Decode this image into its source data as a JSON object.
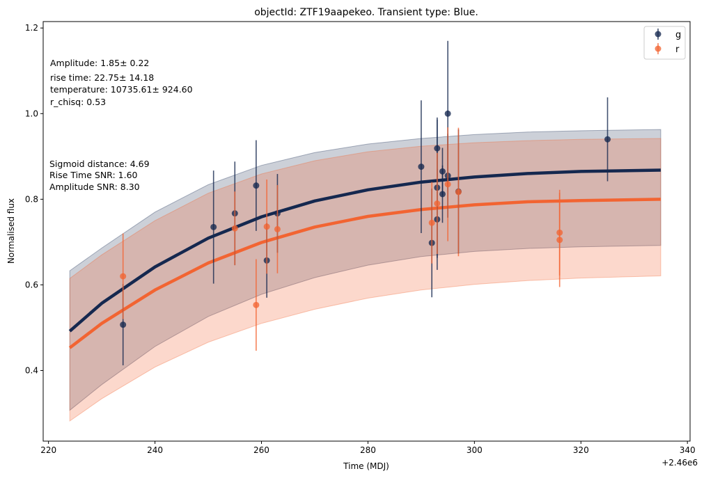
{
  "chart_data": {
    "type": "scatter",
    "title": "objectId: ZTF19aapekeo. Transient type: Blue.",
    "xlabel": "Time (MDJ)",
    "ylabel": "Normalised flux",
    "x_offset_label": "+2.46e6",
    "xlim": [
      219.0,
      340.5
    ],
    "ylim": [
      0.235,
      1.215
    ],
    "xticks": [
      220,
      240,
      260,
      280,
      300,
      320,
      340
    ],
    "yticks": [
      0.4,
      0.6,
      0.8,
      1.0,
      1.2
    ],
    "xtick_labels": [
      "220",
      "240",
      "260",
      "280",
      "300",
      "320",
      "340"
    ],
    "ytick_labels": [
      "0.4",
      "0.6",
      "0.8",
      "1.0",
      "1.2"
    ],
    "grid": false,
    "legend_position": "top-right",
    "annotations_top": [
      "Amplitude: 1.85± 0.22",
      "rise time: 22.75± 14.18",
      "temperature: 10735.61± 924.60",
      "r_chisq: 0.53"
    ],
    "annotations_mid": [
      "Sigmoid distance: 4.69",
      "Rise Time SNR: 1.60",
      "Amplitude SNR: 8.30"
    ],
    "series": [
      {
        "name": "g",
        "color": "#15284f",
        "points": [
          {
            "x": 234,
            "y": 0.507,
            "err": 0.095
          },
          {
            "x": 251,
            "y": 0.735,
            "err": 0.132
          },
          {
            "x": 255,
            "y": 0.767,
            "err": 0.121
          },
          {
            "x": 259,
            "y": 0.832,
            "err": 0.106
          },
          {
            "x": 261,
            "y": 0.657,
            "err": 0.087
          },
          {
            "x": 263,
            "y": 0.767,
            "err": 0.092
          },
          {
            "x": 290,
            "y": 0.876,
            "err": 0.155
          },
          {
            "x": 292,
            "y": 0.698,
            "err": 0.127
          },
          {
            "x": 293,
            "y": 0.753,
            "err": 0.118
          },
          {
            "x": 293,
            "y": 0.827,
            "err": 0.164
          },
          {
            "x": 293,
            "y": 0.919,
            "err": 0.067
          },
          {
            "x": 294,
            "y": 0.865,
            "err": 0.055
          },
          {
            "x": 294,
            "y": 0.812,
            "err": 0.067
          },
          {
            "x": 295,
            "y": 1.0,
            "err": 0.17
          },
          {
            "x": 295,
            "y": 0.855,
            "err": 0.098
          },
          {
            "x": 297,
            "y": 0.818,
            "err": 0.145
          },
          {
            "x": 325,
            "y": 0.94,
            "err": 0.098
          }
        ],
        "fit": {
          "x": [
            224,
            230,
            240,
            250,
            260,
            270,
            280,
            290,
            300,
            310,
            320,
            335
          ],
          "y": [
            0.492,
            0.557,
            0.642,
            0.709,
            0.759,
            0.796,
            0.822,
            0.84,
            0.852,
            0.86,
            0.865,
            0.868
          ],
          "lower": [
            0.307,
            0.367,
            0.456,
            0.526,
            0.578,
            0.617,
            0.646,
            0.666,
            0.678,
            0.685,
            0.689,
            0.692
          ],
          "upper": [
            0.633,
            0.686,
            0.77,
            0.834,
            0.879,
            0.909,
            0.929,
            0.942,
            0.951,
            0.957,
            0.96,
            0.963
          ]
        }
      },
      {
        "name": "r",
        "color": "#f26432",
        "points": [
          {
            "x": 234,
            "y": 0.62,
            "err": 0.1
          },
          {
            "x": 255,
            "y": 0.732,
            "err": 0.086
          },
          {
            "x": 259,
            "y": 0.553,
            "err": 0.107
          },
          {
            "x": 261,
            "y": 0.736,
            "err": 0.11
          },
          {
            "x": 263,
            "y": 0.73,
            "err": 0.103
          },
          {
            "x": 292,
            "y": 0.745,
            "err": 0.095
          },
          {
            "x": 293,
            "y": 0.79,
            "err": 0.118
          },
          {
            "x": 295,
            "y": 0.835,
            "err": 0.133
          },
          {
            "x": 297,
            "y": 0.817,
            "err": 0.15
          },
          {
            "x": 316,
            "y": 0.705,
            "err": 0.11
          },
          {
            "x": 316,
            "y": 0.722,
            "err": 0.1
          }
        ],
        "fit": {
          "x": [
            224,
            230,
            240,
            250,
            260,
            270,
            280,
            290,
            300,
            310,
            320,
            335
          ],
          "y": [
            0.453,
            0.51,
            0.588,
            0.651,
            0.699,
            0.735,
            0.76,
            0.776,
            0.787,
            0.794,
            0.797,
            0.8
          ],
          "lower": [
            0.282,
            0.334,
            0.408,
            0.466,
            0.51,
            0.543,
            0.569,
            0.588,
            0.601,
            0.61,
            0.616,
            0.621
          ],
          "upper": [
            0.615,
            0.67,
            0.75,
            0.814,
            0.859,
            0.89,
            0.911,
            0.924,
            0.932,
            0.937,
            0.94,
            0.942
          ]
        }
      }
    ]
  }
}
